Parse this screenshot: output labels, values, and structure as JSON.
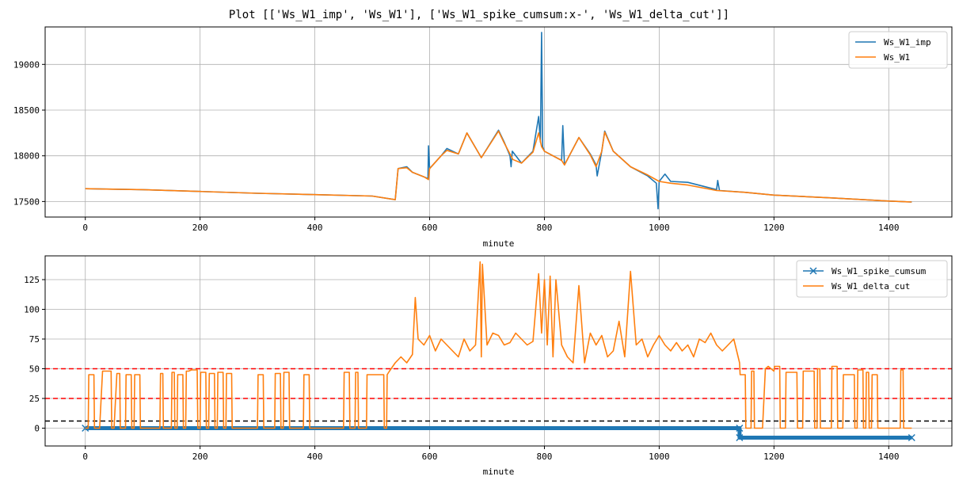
{
  "figure": {
    "title": "Plot [['Ws_W1_imp', 'Ws_W1'], ['Ws_W1_spike_cumsum:x-', 'Ws_W1_delta_cut']]"
  },
  "colors": {
    "blue": "#1f77b4",
    "orange": "#ff7f0e",
    "grid": "#b0b0b0",
    "red_dashed": "#ff0000",
    "black_dashed": "#000000"
  },
  "chart_data": [
    {
      "type": "line",
      "xlabel": "minute",
      "ylabel": "",
      "xlim": [
        -70,
        1510
      ],
      "ylim": [
        17330,
        19410
      ],
      "x_ticks": [
        0,
        200,
        400,
        600,
        800,
        1000,
        1200,
        1400
      ],
      "y_ticks": [
        17500,
        18000,
        18500,
        19000
      ],
      "grid": true,
      "legend": "top-right",
      "series": [
        {
          "name": "Ws_W1_imp",
          "color": "#1f77b4",
          "x": [
            0,
            100,
            200,
            300,
            400,
            500,
            540,
            545,
            560,
            570,
            590,
            597,
            598,
            600,
            620,
            630,
            650,
            665,
            690,
            720,
            730,
            740,
            742,
            744,
            760,
            780,
            790,
            793,
            795,
            797,
            800,
            830,
            832,
            835,
            860,
            880,
            890,
            892,
            900,
            905,
            920,
            950,
            980,
            995,
            998,
            1000,
            1010,
            1020,
            1050,
            1100,
            1102,
            1105,
            1150,
            1200,
            1300,
            1400,
            1440
          ],
          "y": [
            17640,
            17630,
            17610,
            17590,
            17575,
            17560,
            17520,
            17860,
            17880,
            17820,
            17770,
            17750,
            18110,
            17860,
            18000,
            18080,
            18020,
            18250,
            17980,
            18280,
            18150,
            18000,
            17880,
            18050,
            17920,
            18050,
            18430,
            18150,
            19350,
            18100,
            18050,
            17950,
            18330,
            17900,
            18200,
            18020,
            17900,
            17780,
            18050,
            18270,
            18050,
            17880,
            17780,
            17700,
            17420,
            17720,
            17800,
            17720,
            17710,
            17630,
            17730,
            17620,
            17600,
            17570,
            17540,
            17505,
            17495
          ]
        },
        {
          "name": "Ws_W1",
          "color": "#ff7f0e",
          "x": [
            0,
            100,
            200,
            300,
            400,
            500,
            540,
            545,
            560,
            570,
            590,
            598,
            600,
            620,
            630,
            650,
            665,
            690,
            720,
            730,
            745,
            760,
            780,
            790,
            795,
            800,
            830,
            835,
            860,
            880,
            890,
            900,
            905,
            920,
            950,
            980,
            1000,
            1020,
            1050,
            1100,
            1150,
            1200,
            1300,
            1400,
            1440
          ],
          "y": [
            17640,
            17630,
            17610,
            17590,
            17575,
            17560,
            17520,
            17860,
            17870,
            17820,
            17770,
            17740,
            17860,
            18000,
            18060,
            18020,
            18250,
            17980,
            18270,
            18140,
            17960,
            17920,
            18040,
            18250,
            18100,
            18050,
            17950,
            17900,
            18200,
            18010,
            17880,
            18050,
            18260,
            18050,
            17880,
            17790,
            17720,
            17700,
            17680,
            17620,
            17600,
            17570,
            17540,
            17505,
            17495
          ]
        }
      ]
    },
    {
      "type": "line",
      "xlabel": "minute",
      "ylabel": "",
      "xlim": [
        -70,
        1510
      ],
      "ylim": [
        -15,
        145
      ],
      "x_ticks": [
        0,
        200,
        400,
        600,
        800,
        1000,
        1200,
        1400
      ],
      "y_ticks": [
        0,
        25,
        50,
        75,
        100,
        125
      ],
      "grid": true,
      "legend": "top-right",
      "reference_lines": [
        {
          "y": 50,
          "color": "#ff0000",
          "style": "dashed"
        },
        {
          "y": 25,
          "color": "#ff0000",
          "style": "dashed"
        },
        {
          "y": 6,
          "color": "#000000",
          "style": "dashed"
        }
      ],
      "series": [
        {
          "name": "Ws_W1_spike_cumsum",
          "color": "#1f77b4",
          "marker": "x",
          "x": [
            0,
            1140,
            1140,
            1440
          ],
          "y": [
            0,
            0,
            -8,
            -8
          ]
        },
        {
          "name": "Ws_W1_delta_cut",
          "color": "#ff7f0e",
          "x": [
            0,
            5,
            6,
            15,
            16,
            25,
            30,
            45,
            46,
            50,
            55,
            60,
            61,
            70,
            71,
            80,
            81,
            85,
            86,
            95,
            96,
            130,
            131,
            135,
            136,
            150,
            151,
            155,
            156,
            160,
            161,
            170,
            171,
            175,
            176,
            180,
            185,
            195,
            196,
            200,
            201,
            210,
            211,
            215,
            216,
            225,
            226,
            230,
            231,
            240,
            241,
            245,
            246,
            255,
            256,
            300,
            301,
            310,
            311,
            330,
            331,
            340,
            341,
            345,
            346,
            355,
            356,
            380,
            381,
            390,
            391,
            400,
            401,
            450,
            451,
            460,
            461,
            470,
            471,
            475,
            476,
            490,
            491,
            520,
            521,
            525,
            526,
            530,
            540,
            550,
            560,
            570,
            575,
            580,
            590,
            600,
            610,
            620,
            630,
            640,
            650,
            660,
            670,
            680,
            688,
            690,
            692,
            700,
            710,
            720,
            730,
            740,
            750,
            760,
            770,
            780,
            790,
            795,
            800,
            805,
            810,
            815,
            820,
            830,
            840,
            850,
            860,
            870,
            880,
            890,
            900,
            910,
            920,
            930,
            940,
            950,
            960,
            970,
            980,
            990,
            1000,
            1010,
            1020,
            1030,
            1040,
            1050,
            1060,
            1070,
            1080,
            1090,
            1100,
            1110,
            1120,
            1130,
            1140,
            1141,
            1150,
            1151,
            1160,
            1161,
            1165,
            1166,
            1180,
            1185,
            1190,
            1195,
            1200,
            1201,
            1210,
            1211,
            1220,
            1221,
            1240,
            1241,
            1250,
            1251,
            1270,
            1271,
            1275,
            1276,
            1280,
            1281,
            1300,
            1301,
            1310,
            1311,
            1320,
            1321,
            1340,
            1341,
            1345,
            1346,
            1355,
            1356,
            1360,
            1361,
            1365,
            1366,
            1370,
            1371,
            1380,
            1381,
            1420,
            1421,
            1425,
            1426,
            1440
          ],
          "y": [
            0,
            0,
            45,
            45,
            0,
            0,
            48,
            48,
            0,
            0,
            46,
            46,
            0,
            0,
            45,
            45,
            0,
            0,
            45,
            45,
            0,
            0,
            46,
            46,
            0,
            0,
            47,
            47,
            0,
            0,
            45,
            45,
            0,
            0,
            48,
            48,
            49,
            49,
            0,
            0,
            47,
            47,
            0,
            0,
            46,
            46,
            0,
            0,
            47,
            47,
            0,
            0,
            46,
            46,
            0,
            0,
            45,
            45,
            0,
            0,
            46,
            46,
            0,
            0,
            47,
            47,
            0,
            0,
            45,
            45,
            0,
            0,
            0,
            0,
            47,
            47,
            0,
            0,
            47,
            47,
            0,
            0,
            45,
            45,
            0,
            0,
            45,
            48,
            55,
            60,
            55,
            62,
            110,
            75,
            70,
            78,
            65,
            75,
            70,
            65,
            60,
            75,
            65,
            70,
            140,
            60,
            138,
            70,
            80,
            78,
            70,
            72,
            80,
            75,
            70,
            73,
            130,
            80,
            125,
            70,
            128,
            60,
            125,
            70,
            60,
            55,
            120,
            55,
            80,
            70,
            78,
            60,
            65,
            90,
            60,
            132,
            70,
            75,
            60,
            70,
            78,
            70,
            65,
            72,
            65,
            70,
            60,
            75,
            72,
            80,
            70,
            65,
            70,
            75,
            55,
            45,
            45,
            0,
            0,
            48,
            48,
            0,
            0,
            50,
            52,
            50,
            48,
            52,
            52,
            0,
            0,
            47,
            47,
            0,
            0,
            48,
            48,
            0,
            0,
            50,
            50,
            0,
            0,
            52,
            52,
            0,
            0,
            45,
            45,
            0,
            0,
            49,
            49,
            0,
            0,
            47,
            47,
            0,
            0,
            45,
            45,
            0,
            0,
            49,
            49,
            0,
            0
          ]
        }
      ]
    }
  ]
}
